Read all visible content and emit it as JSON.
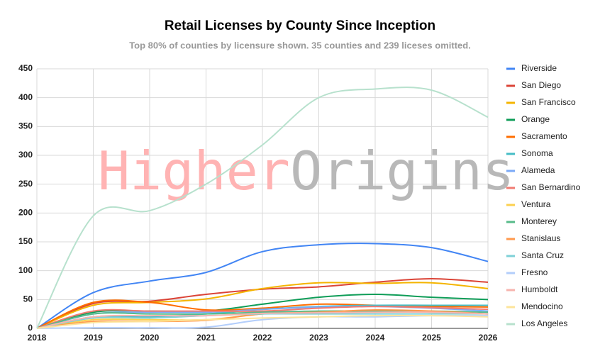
{
  "chart_data": {
    "type": "line",
    "title": "Retail Licenses by County Since Inception",
    "subtitle": "Top 80% of counties by licensure shown. 35 counties and 239 liceses omitted.",
    "watermark": {
      "parts": [
        "Higher",
        "Origins"
      ],
      "colors": [
        "#ffb3b3",
        "#b8b8b8"
      ]
    },
    "x": [
      2018,
      2019,
      2020,
      2021,
      2022,
      2023,
      2024,
      2025,
      2026
    ],
    "xlim": [
      2018,
      2026
    ],
    "xticks": [
      2018,
      2019,
      2020,
      2021,
      2022,
      2023,
      2024,
      2025,
      2026
    ],
    "ylim": [
      0,
      450
    ],
    "yticks": [
      0,
      50,
      100,
      150,
      200,
      250,
      300,
      350,
      400,
      450
    ],
    "grid": true,
    "legend": "right",
    "series": [
      {
        "name": "Riverside",
        "color": "#4285f4",
        "values": [
          0,
          62,
          82,
          97,
          133,
          145,
          147,
          140,
          116
        ]
      },
      {
        "name": "San Diego",
        "color": "#db4437",
        "values": [
          0,
          43,
          47,
          59,
          68,
          72,
          80,
          86,
          80
        ]
      },
      {
        "name": "San Francisco",
        "color": "#f4b400",
        "values": [
          0,
          40,
          45,
          51,
          69,
          79,
          78,
          79,
          69
        ]
      },
      {
        "name": "Orange",
        "color": "#0f9d58",
        "values": [
          0,
          28,
          30,
          30,
          42,
          54,
          59,
          54,
          50
        ]
      },
      {
        "name": "Sacramento",
        "color": "#ff6d00",
        "values": [
          0,
          45,
          45,
          32,
          35,
          42,
          40,
          38,
          37
        ]
      },
      {
        "name": "Sonoma",
        "color": "#46bdc6",
        "values": [
          0,
          20,
          20,
          25,
          33,
          38,
          40,
          40,
          40
        ]
      },
      {
        "name": "Alameda",
        "color": "#7baaf7",
        "values": [
          0,
          25,
          28,
          28,
          33,
          37,
          38,
          35,
          30
        ]
      },
      {
        "name": "San Bernardino",
        "color": "#f07b72",
        "values": [
          0,
          30,
          30,
          30,
          30,
          35,
          38,
          36,
          33
        ]
      },
      {
        "name": "Ventura",
        "color": "#fcd04f",
        "values": [
          0,
          15,
          15,
          15,
          25,
          28,
          30,
          28,
          25
        ]
      },
      {
        "name": "Monterey",
        "color": "#57bb8a",
        "values": [
          0,
          25,
          25,
          25,
          28,
          30,
          30,
          30,
          28
        ]
      },
      {
        "name": "Stanislaus",
        "color": "#ff994d",
        "values": [
          0,
          12,
          12,
          14,
          25,
          28,
          32,
          30,
          25
        ]
      },
      {
        "name": "Santa Cruz",
        "color": "#7ed1d7",
        "values": [
          0,
          18,
          18,
          22,
          25,
          25,
          25,
          25,
          25
        ]
      },
      {
        "name": "Fresno",
        "color": "#b3cefb",
        "values": [
          0,
          1,
          1,
          2,
          15,
          20,
          20,
          22,
          22
        ]
      },
      {
        "name": "Humboldt",
        "color": "#f7b4ae",
        "values": [
          0,
          20,
          22,
          22,
          26,
          27,
          28,
          28,
          25
        ]
      },
      {
        "name": "Mendocino",
        "color": "#fde49b",
        "values": [
          0,
          10,
          12,
          15,
          18,
          20,
          22,
          22,
          20
        ]
      },
      {
        "name": "Los Angeles",
        "color": "#b7e1cd",
        "values": [
          0,
          195,
          204,
          250,
          318,
          400,
          415,
          413,
          366
        ]
      }
    ]
  }
}
